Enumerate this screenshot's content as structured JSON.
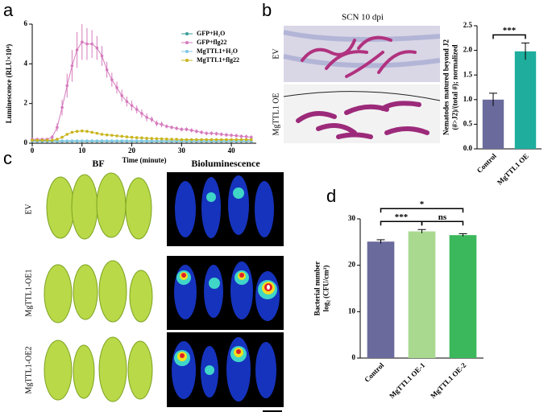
{
  "panel_labels": [
    "a",
    "b",
    "c",
    "d"
  ],
  "chart_data": [
    {
      "type": "line",
      "xlabel": "Time (minute)",
      "ylabel": "Luminescence (RLU×10⁴)",
      "xlim": [
        0,
        45
      ],
      "xticks": [
        0,
        10,
        20,
        30,
        40
      ],
      "ylim": [
        0,
        6
      ],
      "yticks": [
        0,
        2,
        4,
        6
      ],
      "x": [
        0,
        1,
        2,
        3,
        4,
        5,
        6,
        7,
        8,
        9,
        10,
        11,
        12,
        13,
        14,
        15,
        16,
        17,
        18,
        19,
        20,
        21,
        22,
        23,
        24,
        25,
        26,
        27,
        28,
        29,
        30,
        31,
        32,
        33,
        34,
        35,
        36,
        37,
        38,
        39,
        40,
        41,
        42,
        43,
        44
      ],
      "series": [
        {
          "name": "GFP+H₂O",
          "color": "#3a9e9a",
          "values": [
            0.1,
            0.1,
            0.1,
            0.1,
            0.1,
            0.1,
            0.1,
            0.1,
            0.1,
            0.1,
            0.1,
            0.1,
            0.1,
            0.1,
            0.1,
            0.1,
            0.1,
            0.1,
            0.1,
            0.1,
            0.1,
            0.1,
            0.1,
            0.1,
            0.1,
            0.1,
            0.1,
            0.1,
            0.1,
            0.1,
            0.1,
            0.1,
            0.1,
            0.1,
            0.1,
            0.1,
            0.1,
            0.1,
            0.1,
            0.1,
            0.1,
            0.1,
            0.1,
            0.1,
            0.1
          ]
        },
        {
          "name": "GFP+flg22",
          "color": "#d67bbd",
          "values": [
            0.2,
            0.2,
            0.2,
            0.2,
            0.3,
            0.8,
            1.8,
            2.9,
            3.9,
            4.7,
            5.1,
            5.0,
            5.0,
            4.8,
            4.4,
            3.7,
            3.2,
            2.8,
            2.4,
            2.1,
            1.9,
            1.7,
            1.5,
            1.3,
            1.2,
            1.0,
            0.95,
            0.85,
            0.8,
            0.75,
            0.7,
            0.7,
            0.65,
            0.6,
            0.55,
            0.5,
            0.5,
            0.48,
            0.45,
            0.42,
            0.4,
            0.38,
            0.35,
            0.33,
            0.3
          ],
          "errors": [
            0.05,
            0.05,
            0.05,
            0.05,
            0.1,
            0.2,
            0.4,
            0.6,
            0.8,
            0.9,
            0.9,
            0.8,
            0.7,
            0.6,
            0.5,
            0.4,
            0.35,
            0.3,
            0.3,
            0.25,
            0.25,
            0.2,
            0.2,
            0.2,
            0.15,
            0.15,
            0.15,
            0.1,
            0.1,
            0.1,
            0.1,
            0.1,
            0.1,
            0.1,
            0.1,
            0.1,
            0.1,
            0.1,
            0.1,
            0.1,
            0.1,
            0.1,
            0.1,
            0.1,
            0.1
          ]
        },
        {
          "name": "MgTTL1+H₂O",
          "color": "#7fc6e4",
          "values": [
            0.12,
            0.12,
            0.12,
            0.12,
            0.12,
            0.12,
            0.12,
            0.12,
            0.12,
            0.12,
            0.12,
            0.12,
            0.12,
            0.12,
            0.12,
            0.12,
            0.12,
            0.12,
            0.12,
            0.12,
            0.12,
            0.12,
            0.12,
            0.12,
            0.12,
            0.12,
            0.12,
            0.12,
            0.12,
            0.12,
            0.12,
            0.12,
            0.12,
            0.12,
            0.12,
            0.12,
            0.12,
            0.12,
            0.12,
            0.12,
            0.12,
            0.12,
            0.12,
            0.12,
            0.12
          ]
        },
        {
          "name": "MgTTL1+flg22",
          "color": "#c9b51c",
          "values": [
            0.15,
            0.15,
            0.15,
            0.15,
            0.15,
            0.2,
            0.3,
            0.45,
            0.55,
            0.6,
            0.62,
            0.6,
            0.55,
            0.5,
            0.45,
            0.42,
            0.4,
            0.37,
            0.35,
            0.32,
            0.3,
            0.28,
            0.27,
            0.25,
            0.24,
            0.23,
            0.22,
            0.21,
            0.2,
            0.2,
            0.18,
            0.18,
            0.18,
            0.18,
            0.18,
            0.18,
            0.18,
            0.18,
            0.18,
            0.18,
            0.18,
            0.18,
            0.18,
            0.18,
            0.18
          ]
        }
      ]
    },
    {
      "type": "bar",
      "ylabel": [
        "Nematodes matured beyond J2",
        "(#>J2)/(total #); normalized"
      ],
      "categories": [
        "Control",
        "MgTTL1 OE"
      ],
      "values": [
        1.0,
        1.98
      ],
      "errors": [
        0.13,
        0.17
      ],
      "colors": [
        "#6a6b9c",
        "#1fae9d"
      ],
      "ylim": [
        0,
        2.5
      ],
      "yticks": [
        {
          "value": 0,
          "label": "0.0"
        },
        0.5,
        {
          "value": 1,
          "label": "1.0"
        },
        1.5,
        {
          "value": 2,
          "label": "2.0"
        },
        2.5
      ],
      "annotations": [
        {
          "text": "***",
          "between": [
            0,
            1
          ]
        }
      ]
    },
    {
      "type": "bar",
      "ylabel": [
        "Bacterial number",
        "log₂ (CFU/cm²)"
      ],
      "categories": [
        "Control",
        "MgTTL1 OE-1",
        "MgTTL1 OE-2"
      ],
      "values": [
        25.1,
        27.3,
        26.5
      ],
      "errors": [
        0.4,
        0.4,
        0.3
      ],
      "colors": [
        "#6a6b9c",
        "#a9d98f",
        "#3cb85c"
      ],
      "ylim": [
        0,
        30
      ],
      "yticks": [
        0,
        10,
        20,
        30
      ],
      "annotations": [
        {
          "text": "***",
          "between": [
            0,
            1
          ]
        },
        {
          "text": "ns",
          "between": [
            1,
            2
          ]
        },
        {
          "text": "*",
          "between": [
            0,
            2
          ]
        }
      ]
    }
  ],
  "image_b": {
    "title": "SCN 10 dpi",
    "rows": [
      "EV",
      "MgTTL1 OE"
    ]
  },
  "image_c": {
    "columns": [
      "BF",
      "Bioluminescence"
    ],
    "rows": [
      "EV",
      "MgTTL1-OE1",
      "MgTTL1-OE2"
    ]
  }
}
